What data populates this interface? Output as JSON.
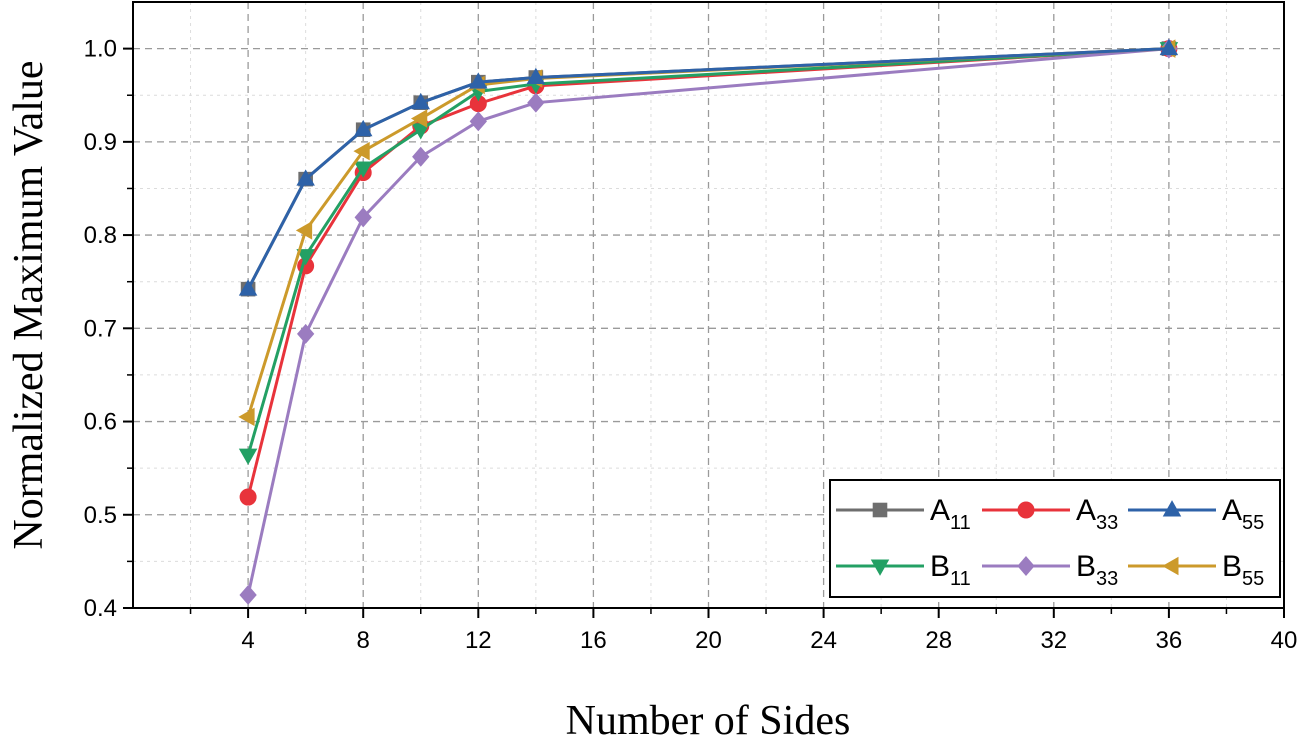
{
  "chart_data": {
    "type": "line",
    "xlabel": "Number of Sides",
    "ylabel": "Normalized Maximum Value",
    "xlim": [
      0,
      40
    ],
    "ylim": [
      0.4,
      1.05
    ],
    "xticks": [
      4,
      8,
      12,
      16,
      20,
      24,
      28,
      32,
      36,
      40
    ],
    "xtick_labels": [
      "4",
      "8",
      "12",
      "16",
      "20",
      "24",
      "28",
      "32",
      "36",
      "40"
    ],
    "yticks": [
      0.4,
      0.5,
      0.6,
      0.7,
      0.8,
      0.9,
      1.0
    ],
    "ytick_labels": [
      "0.4",
      "0.5",
      "0.6",
      "0.7",
      "0.8",
      "0.9",
      "1.0"
    ],
    "grid": true,
    "legend_position": "bottom-right",
    "x": [
      4,
      6,
      8,
      10,
      12,
      14,
      36
    ],
    "series": [
      {
        "name": "A",
        "subscript": "11",
        "color": "#6e6e6e",
        "marker": "square",
        "values": [
          0.742,
          0.86,
          0.913,
          0.942,
          0.964,
          0.969,
          1.0
        ]
      },
      {
        "name": "A",
        "subscript": "33",
        "color": "#e8333b",
        "marker": "circle",
        "values": [
          0.519,
          0.767,
          0.867,
          0.917,
          0.941,
          0.96,
          1.0
        ]
      },
      {
        "name": "A",
        "subscript": "55",
        "color": "#2e62a8",
        "marker": "triangle-up",
        "values": [
          0.742,
          0.86,
          0.913,
          0.942,
          0.964,
          0.969,
          1.0
        ]
      },
      {
        "name": "B",
        "subscript": "11",
        "color": "#23a064",
        "marker": "triangle-down",
        "values": [
          0.564,
          0.778,
          0.872,
          0.913,
          0.954,
          0.962,
          1.0
        ]
      },
      {
        "name": "B",
        "subscript": "33",
        "color": "#9b7cc0",
        "marker": "diamond",
        "values": [
          0.414,
          0.694,
          0.819,
          0.884,
          0.922,
          0.942,
          1.0
        ]
      },
      {
        "name": "B",
        "subscript": "55",
        "color": "#cc9a2b",
        "marker": "triangle-left",
        "values": [
          0.605,
          0.805,
          0.89,
          0.925,
          0.961,
          0.968,
          1.0
        ]
      }
    ]
  }
}
